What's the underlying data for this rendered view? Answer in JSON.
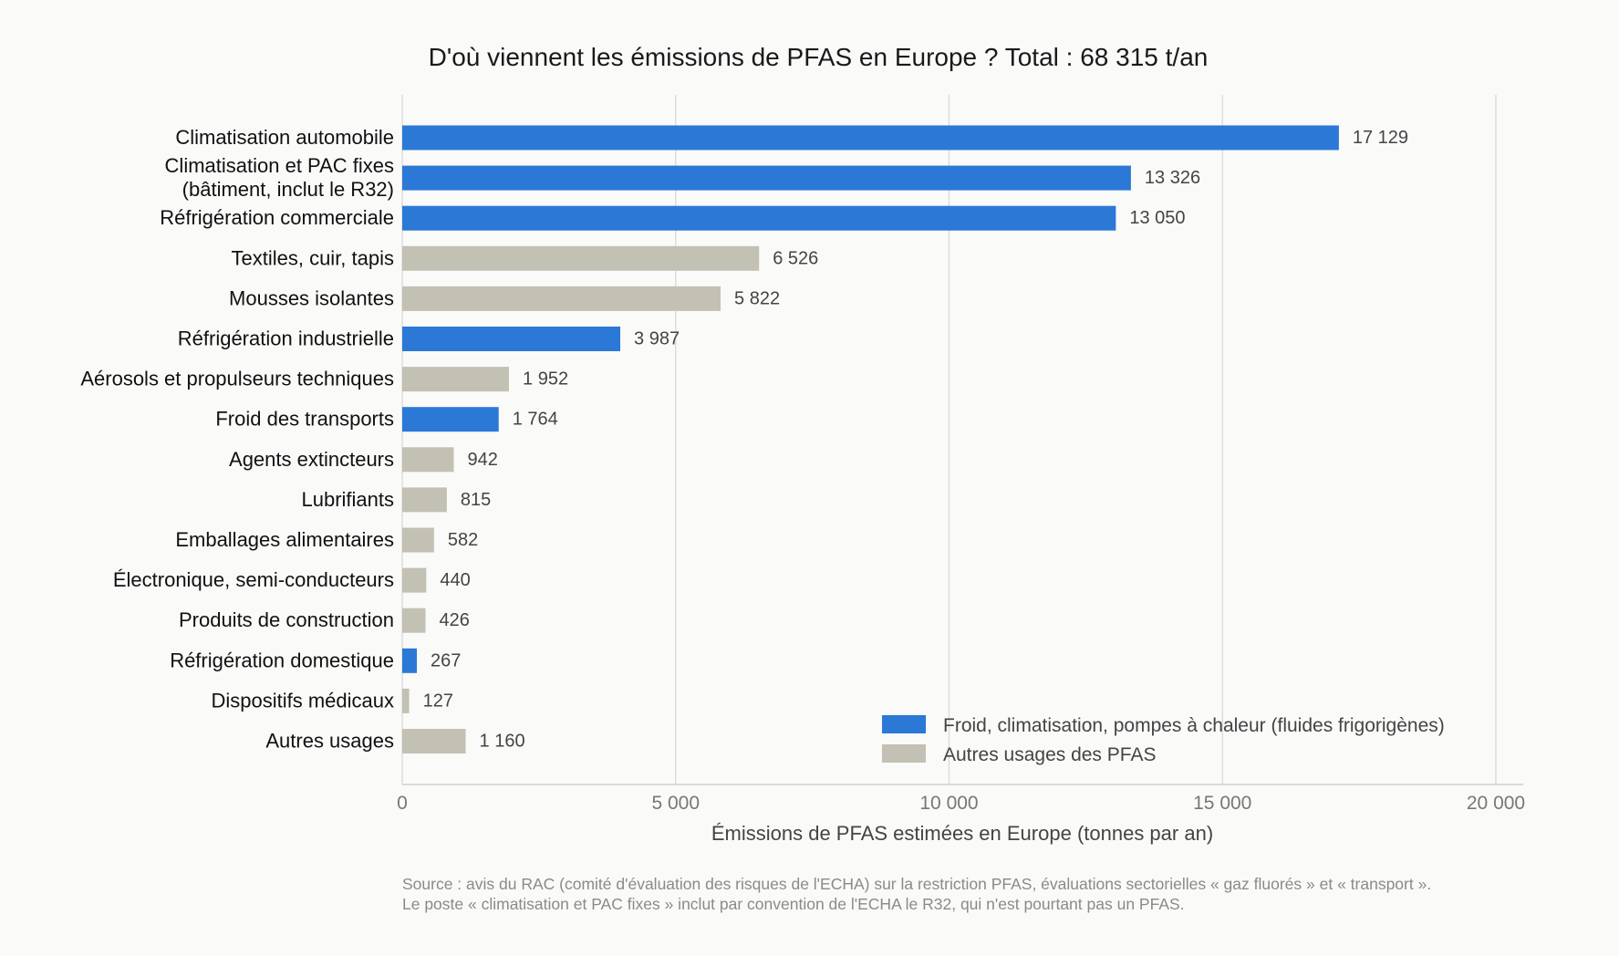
{
  "chart_data": {
    "type": "bar",
    "orientation": "horizontal",
    "title": "D'où viennent les émissions de PFAS en Europe ? Total : 68 315 t/an",
    "xlabel": "Émissions de PFAS estimées en Europe (tonnes par an)",
    "ylabel": "",
    "xlim": [
      0,
      20500
    ],
    "xticks": [
      0,
      5000,
      10000,
      15000,
      20000
    ],
    "xtick_labels": [
      "0",
      "5 000",
      "10 000",
      "15 000",
      "20 000"
    ],
    "grid": "vertical",
    "legend_position": "bottom-right",
    "colors": {
      "cooling": "#2b78d6",
      "other": "#c2c1b4"
    },
    "legend": [
      {
        "group": "cooling",
        "label": "Froid, climatisation, pompes à chaleur (fluides frigorigènes)"
      },
      {
        "group": "other",
        "label": "Autres usages des PFAS"
      }
    ],
    "bars": [
      {
        "category": [
          "Climatisation automobile"
        ],
        "value": 17129,
        "label": "17 129",
        "group": "cooling"
      },
      {
        "category": [
          "Climatisation et PAC fixes",
          "(bâtiment, inclut le R32)"
        ],
        "value": 13326,
        "label": "13 326",
        "group": "cooling"
      },
      {
        "category": [
          "Réfrigération commerciale"
        ],
        "value": 13050,
        "label": "13 050",
        "group": "cooling"
      },
      {
        "category": [
          "Textiles, cuir, tapis"
        ],
        "value": 6526,
        "label": "6 526",
        "group": "other"
      },
      {
        "category": [
          "Mousses isolantes"
        ],
        "value": 5822,
        "label": "5 822",
        "group": "other"
      },
      {
        "category": [
          "Réfrigération industrielle"
        ],
        "value": 3987,
        "label": "3 987",
        "group": "cooling"
      },
      {
        "category": [
          "Aérosols et propulseurs techniques"
        ],
        "value": 1952,
        "label": "1 952",
        "group": "other"
      },
      {
        "category": [
          "Froid des transports"
        ],
        "value": 1764,
        "label": "1 764",
        "group": "cooling"
      },
      {
        "category": [
          "Agents extincteurs"
        ],
        "value": 942,
        "label": "942",
        "group": "other"
      },
      {
        "category": [
          "Lubrifiants"
        ],
        "value": 815,
        "label": "815",
        "group": "other"
      },
      {
        "category": [
          "Emballages alimentaires"
        ],
        "value": 582,
        "label": "582",
        "group": "other"
      },
      {
        "category": [
          "Électronique, semi-conducteurs"
        ],
        "value": 440,
        "label": "440",
        "group": "other"
      },
      {
        "category": [
          "Produits de construction"
        ],
        "value": 426,
        "label": "426",
        "group": "other"
      },
      {
        "category": [
          "Réfrigération domestique"
        ],
        "value": 267,
        "label": "267",
        "group": "cooling"
      },
      {
        "category": [
          "Dispositifs médicaux"
        ],
        "value": 127,
        "label": "127",
        "group": "other"
      },
      {
        "category": [
          "Autres usages"
        ],
        "value": 1160,
        "label": "1 160",
        "group": "other"
      }
    ],
    "source_lines": [
      "Source : avis du RAC (comité d'évaluation des risques de l'ECHA) sur la restriction PFAS, évaluations sectorielles « gaz fluorés » et « transport ».",
      "Le poste « climatisation et PAC fixes » inclut par convention de l'ECHA le R32, qui n'est pourtant pas un PFAS."
    ]
  }
}
